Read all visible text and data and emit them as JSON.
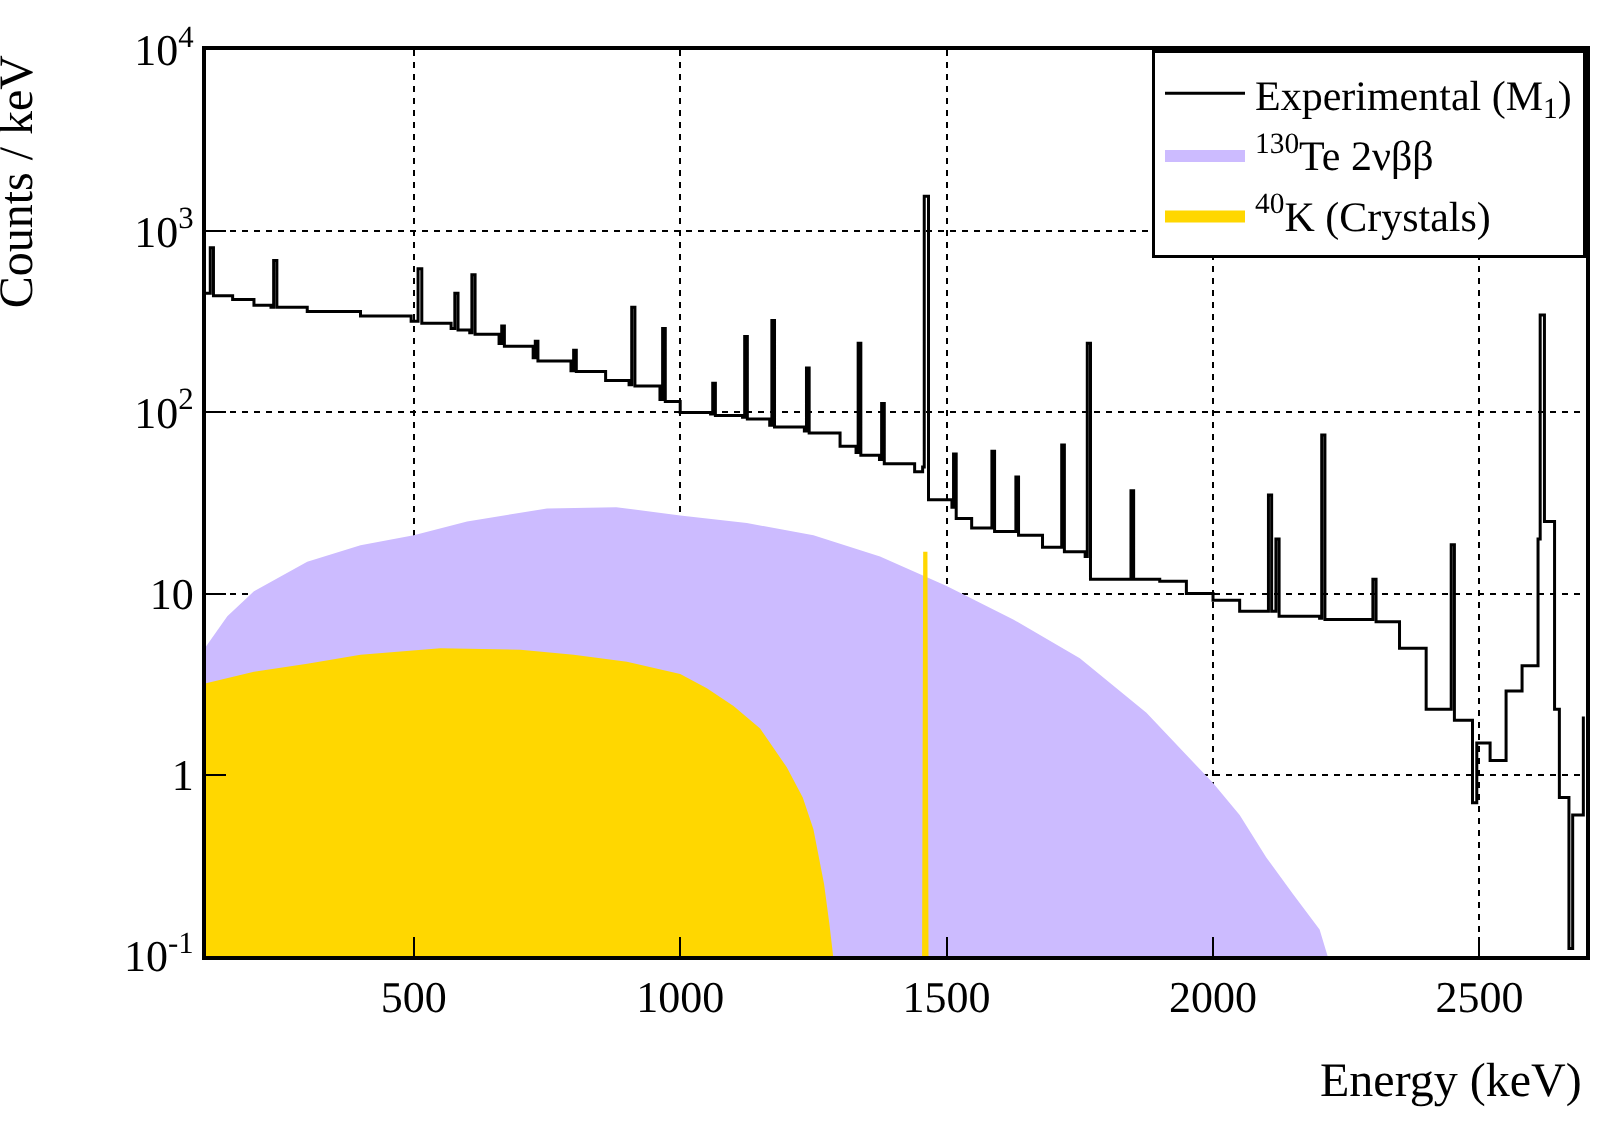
{
  "chart_data": {
    "type": "step",
    "xlabel": "Energy (keV)",
    "ylabel": "Counts / keV",
    "log": "y",
    "grid": true,
    "legend": "top right",
    "xlim": [
      110,
      2700
    ],
    "xticks": [
      500,
      1000,
      1500,
      2000,
      2500
    ],
    "ylim": [
      0.1,
      10000
    ],
    "yticks": [
      {
        "value": 0.1,
        "label": "10$^{-1}$"
      },
      1,
      10,
      {
        "value": 100,
        "label": "10$^{2}$"
      },
      {
        "value": 1000,
        "label": "10$^{3}$"
      },
      {
        "value": 10000,
        "label": "10$^{4}$"
      }
    ],
    "series": [
      {
        "name": "Experimental (M$_{1}$)",
        "color": "#000000",
        "x": [
          110,
          118,
          124,
          160,
          200,
          232,
          237,
          243,
          300,
          400,
          495,
          508,
          515,
          570,
          577,
          583,
          605,
          609,
          615,
          660,
          665,
          670,
          724,
          728,
          733,
          795,
          800,
          805,
          860,
          904,
          909,
          915,
          962,
          967,
          972,
          1000,
          1057,
          1061,
          1066,
          1117,
          1121,
          1126,
          1168,
          1172,
          1177,
          1233,
          1237,
          1242,
          1300,
          1330,
          1334,
          1339,
          1374,
          1378,
          1383,
          1440,
          1455,
          1458,
          1466,
          1510,
          1513,
          1518,
          1547,
          1585,
          1590,
          1630,
          1635,
          1680,
          1716,
          1721,
          1760,
          1764,
          1770,
          1800,
          1846,
          1851,
          1900,
          1950,
          2000,
          2050,
          2104,
          2110,
          2118,
          2124,
          2200,
          2204,
          2210,
          2300,
          2306,
          2350,
          2400,
          2447,
          2453,
          2487,
          2495,
          2520,
          2550,
          2580,
          2610,
          2614,
          2622,
          2641,
          2650,
          2668,
          2675,
          2695
        ],
        "values": [
          455,
          810,
          440,
          420,
          390,
          380,
          690,
          380,
          360,
          340,
          318,
          620,
          310,
          290,
          455,
          285,
          275,
          575,
          270,
          240,
          300,
          232,
          200,
          247,
          192,
          170,
          220,
          168,
          150,
          142,
          380,
          140,
          118,
          290,
          115,
          100,
          98,
          145,
          96,
          94,
          262,
          92,
          85,
          322,
          83,
          79,
          176,
          77,
          65,
          60,
          241,
          58,
          55,
          112,
          52,
          47,
          50,
          1560,
          33,
          30,
          59,
          26,
          23,
          61,
          22,
          44,
          21,
          18,
          66,
          17,
          16,
          241,
          12,
          12,
          37,
          12,
          11.7,
          10,
          9.2,
          8,
          35,
          8,
          20,
          7.5,
          7.3,
          75,
          7.2,
          12,
          7,
          5,
          2.3,
          18.6,
          2.0,
          0.7,
          1.5,
          1.2,
          2.9,
          4,
          20,
          345,
          25,
          2.3,
          0.75,
          0.11,
          0.6,
          2.1
        ]
      },
      {
        "name": "$^{130}$Te 2νββ",
        "type": "area",
        "color": "#ccbbff",
        "x": [
          110,
          150,
          200,
          300,
          400,
          500,
          600,
          750,
          880,
          1000,
          1125,
          1250,
          1375,
          1500,
          1625,
          1750,
          1875,
          2000,
          2050,
          2100,
          2150,
          2200,
          2215
        ],
        "values": [
          5.1,
          7.5,
          10.3,
          15,
          18.5,
          21,
          25,
          29.5,
          30,
          27,
          24.5,
          21,
          16,
          11,
          7.2,
          4.4,
          2.2,
          0.9,
          0.6,
          0.35,
          0.22,
          0.14,
          0.1
        ]
      },
      {
        "name": "$^{40}$K (Crystals)",
        "type": "area",
        "color": "#ffd700",
        "x": [
          110,
          200,
          300,
          400,
          550,
          700,
          800,
          900,
          1000,
          1050,
          1100,
          1150,
          1200,
          1230,
          1250,
          1270,
          1280,
          1287,
          1370,
          1454,
          1456,
          1464,
          1466
        ],
        "values": [
          3.2,
          3.7,
          4.1,
          4.6,
          5.0,
          4.9,
          4.6,
          4.2,
          3.6,
          3.0,
          2.4,
          1.8,
          1.1,
          0.75,
          0.5,
          0.25,
          0.15,
          0.1,
          null,
          0.1,
          17,
          17,
          0.1
        ]
      }
    ]
  }
}
